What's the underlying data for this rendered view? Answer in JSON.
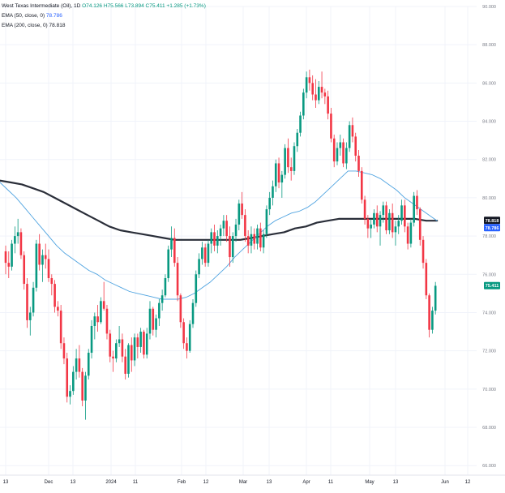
{
  "legend": {
    "symbol": "West Texas Intermediate (Oil), 1D",
    "ohlc": "O74.126  H75.566  L73.894  C75.411  +1.285 (+1.73%)",
    "ema50_label": "EMA (50, close, 0)",
    "ema50_value": "78.786",
    "ema200_label": "EMA (200, close, 0)",
    "ema200_value": "78.818"
  },
  "chart_data": {
    "type": "candlestick",
    "title": "",
    "xlabel": "",
    "ylabel": "",
    "ylim": [
      65.5,
      90.0
    ],
    "grid": true,
    "x_tick_labels": [
      "13",
      "Dec",
      "13",
      "2024",
      "11",
      "Feb",
      "12",
      "Mar",
      "13",
      "Apr",
      "11",
      "May",
      "13",
      "Jun",
      "12"
    ],
    "y_tick_labels": [
      "90.000",
      "88.000",
      "86.000",
      "84.000",
      "82.000",
      "80.000",
      "78.000",
      "76.000",
      "74.000",
      "72.000",
      "70.000",
      "68.000",
      "66.000"
    ],
    "y_tick_values": [
      90,
      88,
      86,
      84,
      82,
      80,
      78,
      76,
      74,
      72,
      70,
      68,
      66
    ],
    "price_labels": [
      {
        "name": "EMA 200",
        "value": "78.818",
        "y": 78.82,
        "color": "#131722"
      },
      {
        "name": "EMA 50",
        "value": "78.786",
        "y": 78.79,
        "color": "#2962ff"
      },
      {
        "name": "Close",
        "value": "75.411",
        "y": 75.41,
        "color": "#089981"
      }
    ],
    "candles": [
      [
        77.2,
        77.5,
        76.0,
        76.6
      ],
      [
        76.6,
        77.2,
        75.8,
        76.4
      ],
      [
        76.4,
        77.8,
        76.2,
        77.6
      ],
      [
        77.6,
        78.5,
        77.1,
        78.0
      ],
      [
        78.0,
        78.9,
        77.6,
        78.2
      ],
      [
        78.2,
        78.4,
        76.8,
        77.0
      ],
      [
        77.0,
        77.2,
        75.2,
        75.5
      ],
      [
        75.5,
        75.8,
        73.2,
        73.6
      ],
      [
        73.6,
        74.3,
        72.8,
        74.0
      ],
      [
        74.0,
        75.6,
        73.8,
        75.3
      ],
      [
        75.3,
        77.8,
        75.1,
        77.6
      ],
      [
        77.6,
        78.1,
        76.2,
        76.5
      ],
      [
        76.5,
        77.3,
        75.6,
        77.0
      ],
      [
        77.0,
        77.6,
        76.3,
        76.8
      ],
      [
        76.8,
        77.3,
        75.6,
        75.8
      ],
      [
        75.8,
        76.0,
        74.9,
        75.5
      ],
      [
        75.5,
        75.7,
        74.0,
        74.3
      ],
      [
        74.3,
        74.6,
        73.8,
        74.1
      ],
      [
        74.1,
        74.4,
        72.1,
        72.4
      ],
      [
        72.4,
        72.7,
        71.3,
        71.6
      ],
      [
        71.6,
        71.9,
        69.3,
        69.6
      ],
      [
        69.6,
        70.2,
        69.2,
        69.9
      ],
      [
        69.9,
        71.2,
        69.7,
        70.9
      ],
      [
        70.9,
        72.1,
        70.5,
        71.6
      ],
      [
        71.6,
        72.3,
        70.6,
        70.9
      ],
      [
        70.9,
        71.1,
        69.1,
        69.4
      ],
      [
        69.4,
        70.9,
        68.4,
        70.7
      ],
      [
        70.7,
        72.1,
        70.5,
        71.9
      ],
      [
        71.9,
        73.6,
        71.6,
        73.3
      ],
      [
        73.3,
        74.0,
        72.6,
        73.8
      ],
      [
        73.8,
        74.4,
        73.0,
        73.5
      ],
      [
        73.5,
        74.8,
        73.4,
        74.6
      ],
      [
        74.6,
        75.6,
        74.1,
        74.2
      ],
      [
        74.2,
        74.4,
        72.6,
        72.9
      ],
      [
        72.9,
        73.1,
        71.4,
        71.7
      ],
      [
        71.7,
        72.0,
        70.9,
        71.6
      ],
      [
        71.6,
        72.6,
        71.4,
        72.4
      ],
      [
        72.4,
        73.3,
        72.2,
        72.6
      ],
      [
        72.6,
        72.9,
        71.4,
        71.7
      ],
      [
        71.7,
        72.1,
        70.5,
        70.8
      ],
      [
        70.8,
        72.4,
        70.6,
        72.3
      ],
      [
        72.3,
        72.7,
        70.9,
        71.5
      ],
      [
        71.5,
        72.9,
        71.2,
        72.7
      ],
      [
        72.7,
        72.9,
        71.6,
        72.2
      ],
      [
        72.2,
        73.2,
        71.9,
        73.0
      ],
      [
        73.0,
        73.1,
        71.6,
        71.8
      ],
      [
        71.8,
        73.2,
        71.6,
        72.9
      ],
      [
        72.9,
        74.6,
        72.6,
        74.2
      ],
      [
        74.2,
        74.3,
        72.8,
        73.1
      ],
      [
        73.1,
        73.9,
        72.7,
        73.7
      ],
      [
        73.7,
        74.7,
        73.3,
        74.5
      ],
      [
        74.5,
        75.2,
        74.1,
        74.9
      ],
      [
        74.9,
        76.0,
        74.8,
        75.8
      ],
      [
        75.8,
        77.5,
        75.6,
        77.3
      ],
      [
        77.3,
        78.5,
        76.9,
        77.9
      ],
      [
        77.9,
        78.4,
        76.4,
        76.6
      ],
      [
        76.6,
        76.9,
        74.6,
        74.9
      ],
      [
        74.9,
        75.0,
        73.2,
        73.5
      ],
      [
        73.5,
        73.7,
        72.1,
        72.4
      ],
      [
        72.4,
        72.7,
        71.6,
        72.0
      ],
      [
        72.0,
        73.6,
        71.9,
        73.4
      ],
      [
        73.4,
        74.7,
        73.2,
        74.5
      ],
      [
        74.5,
        76.2,
        74.3,
        76.0
      ],
      [
        76.0,
        77.1,
        75.8,
        76.8
      ],
      [
        76.8,
        77.7,
        76.5,
        77.4
      ],
      [
        77.4,
        77.6,
        76.4,
        76.6
      ],
      [
        76.6,
        77.8,
        76.4,
        77.6
      ],
      [
        77.6,
        78.4,
        77.1,
        78.2
      ],
      [
        78.2,
        78.6,
        77.2,
        77.5
      ],
      [
        77.5,
        78.3,
        77.1,
        78.0
      ],
      [
        78.0,
        78.6,
        77.5,
        78.4
      ],
      [
        78.4,
        79.1,
        78.0,
        78.8
      ],
      [
        78.8,
        79.1,
        77.7,
        78.0
      ],
      [
        78.0,
        78.5,
        76.4,
        76.9
      ],
      [
        76.9,
        78.2,
        76.6,
        78.0
      ],
      [
        78.0,
        78.9,
        77.7,
        78.6
      ],
      [
        78.6,
        79.9,
        78.3,
        79.7
      ],
      [
        79.7,
        80.3,
        78.9,
        79.1
      ],
      [
        79.1,
        79.4,
        77.7,
        78.0
      ],
      [
        78.0,
        78.3,
        77.1,
        77.5
      ],
      [
        77.5,
        78.5,
        77.1,
        78.1
      ],
      [
        78.1,
        78.4,
        77.3,
        77.6
      ],
      [
        77.6,
        78.6,
        77.3,
        78.4
      ],
      [
        78.4,
        78.7,
        77.2,
        77.4
      ],
      [
        77.4,
        78.3,
        77.1,
        78.1
      ],
      [
        78.1,
        79.6,
        77.9,
        79.4
      ],
      [
        79.4,
        80.3,
        79.1,
        80.0
      ],
      [
        80.0,
        80.9,
        79.6,
        80.6
      ],
      [
        80.6,
        82.0,
        80.3,
        81.8
      ],
      [
        81.8,
        82.1,
        80.5,
        80.8
      ],
      [
        80.8,
        81.4,
        80.0,
        81.2
      ],
      [
        81.2,
        82.8,
        81.0,
        82.6
      ],
      [
        82.6,
        83.1,
        81.3,
        81.6
      ],
      [
        81.6,
        82.1,
        80.9,
        81.4
      ],
      [
        81.4,
        82.9,
        81.2,
        82.7
      ],
      [
        82.7,
        83.6,
        82.4,
        83.4
      ],
      [
        83.4,
        84.5,
        83.2,
        84.3
      ],
      [
        84.3,
        85.7,
        84.1,
        85.5
      ],
      [
        85.5,
        86.6,
        85.2,
        86.3
      ],
      [
        86.3,
        86.7,
        85.6,
        86.0
      ],
      [
        86.0,
        86.4,
        85.1,
        85.4
      ],
      [
        85.4,
        86.2,
        84.7,
        85.1
      ],
      [
        85.1,
        86.1,
        84.9,
        85.8
      ],
      [
        85.8,
        86.6,
        85.2,
        85.5
      ],
      [
        85.5,
        85.7,
        84.9,
        85.3
      ],
      [
        85.3,
        85.6,
        84.1,
        84.4
      ],
      [
        84.4,
        84.7,
        82.9,
        83.1
      ],
      [
        83.1,
        83.3,
        81.6,
        81.9
      ],
      [
        81.9,
        82.9,
        81.7,
        82.6
      ],
      [
        82.6,
        83.3,
        82.2,
        82.9
      ],
      [
        82.9,
        83.1,
        81.6,
        81.8
      ],
      [
        81.8,
        82.9,
        81.5,
        82.6
      ],
      [
        82.6,
        84.0,
        82.4,
        83.8
      ],
      [
        83.8,
        84.2,
        82.9,
        83.2
      ],
      [
        83.2,
        83.4,
        81.9,
        82.2
      ],
      [
        82.2,
        82.5,
        81.1,
        81.4
      ],
      [
        81.4,
        81.6,
        79.7,
        79.9
      ],
      [
        79.9,
        80.1,
        78.6,
        78.9
      ],
      [
        78.9,
        79.1,
        77.9,
        78.4
      ],
      [
        78.4,
        78.9,
        77.9,
        78.6
      ],
      [
        78.6,
        79.4,
        78.4,
        79.2
      ],
      [
        79.2,
        79.6,
        78.2,
        78.5
      ],
      [
        78.5,
        79.3,
        77.5,
        79.1
      ],
      [
        79.1,
        79.8,
        78.7,
        79.6
      ],
      [
        79.6,
        79.8,
        78.1,
        78.3
      ],
      [
        78.3,
        79.4,
        78.1,
        79.2
      ],
      [
        79.2,
        79.7,
        77.9,
        78.2
      ],
      [
        78.2,
        78.8,
        77.5,
        78.5
      ],
      [
        78.5,
        79.1,
        78.1,
        78.8
      ],
      [
        78.8,
        79.9,
        78.6,
        79.6
      ],
      [
        79.6,
        79.9,
        78.2,
        78.5
      ],
      [
        78.5,
        78.7,
        77.3,
        77.6
      ],
      [
        77.6,
        78.9,
        77.4,
        78.7
      ],
      [
        78.7,
        80.3,
        78.5,
        80.1
      ],
      [
        80.1,
        80.4,
        79.1,
        79.4
      ],
      [
        79.4,
        79.5,
        77.5,
        77.8
      ],
      [
        77.8,
        78.0,
        76.3,
        76.6
      ],
      [
        76.6,
        76.8,
        74.7,
        74.9
      ],
      [
        74.9,
        75.0,
        72.7,
        73.1
      ],
      [
        73.1,
        74.3,
        72.9,
        74.1
      ],
      [
        74.1,
        75.6,
        73.9,
        75.4
      ]
    ],
    "ema50": [
      80.8,
      80.4,
      80.0,
      79.5,
      79.0,
      78.5,
      78.0,
      77.5,
      77.1,
      76.8,
      76.5,
      76.2,
      76.0,
      75.7,
      75.5,
      75.3,
      75.1,
      75.0,
      74.9,
      74.8,
      74.7,
      74.7,
      74.7,
      74.8,
      75.0,
      75.3,
      75.6,
      76.0,
      76.4,
      76.9,
      77.3,
      77.7,
      78.1,
      78.5,
      78.8,
      79.0,
      79.2,
      79.3,
      79.5,
      79.8,
      80.2,
      80.6,
      81.0,
      81.4,
      81.4,
      81.3,
      81.2,
      81.0,
      80.7,
      80.4,
      80.0,
      79.7,
      79.4,
      79.1,
      78.8
    ],
    "ema200": [
      80.9,
      80.8,
      80.7,
      80.5,
      80.3,
      80.0,
      79.7,
      79.4,
      79.1,
      78.8,
      78.5,
      78.3,
      78.2,
      78.1,
      78.0,
      77.9,
      77.8,
      77.8,
      77.8,
      77.8,
      77.8,
      77.8,
      77.8,
      77.9,
      78.0,
      78.1,
      78.2,
      78.4,
      78.5,
      78.7,
      78.8,
      78.9,
      78.9,
      78.9,
      78.9,
      78.9,
      78.9,
      78.9,
      78.9,
      78.8,
      78.8
    ]
  }
}
